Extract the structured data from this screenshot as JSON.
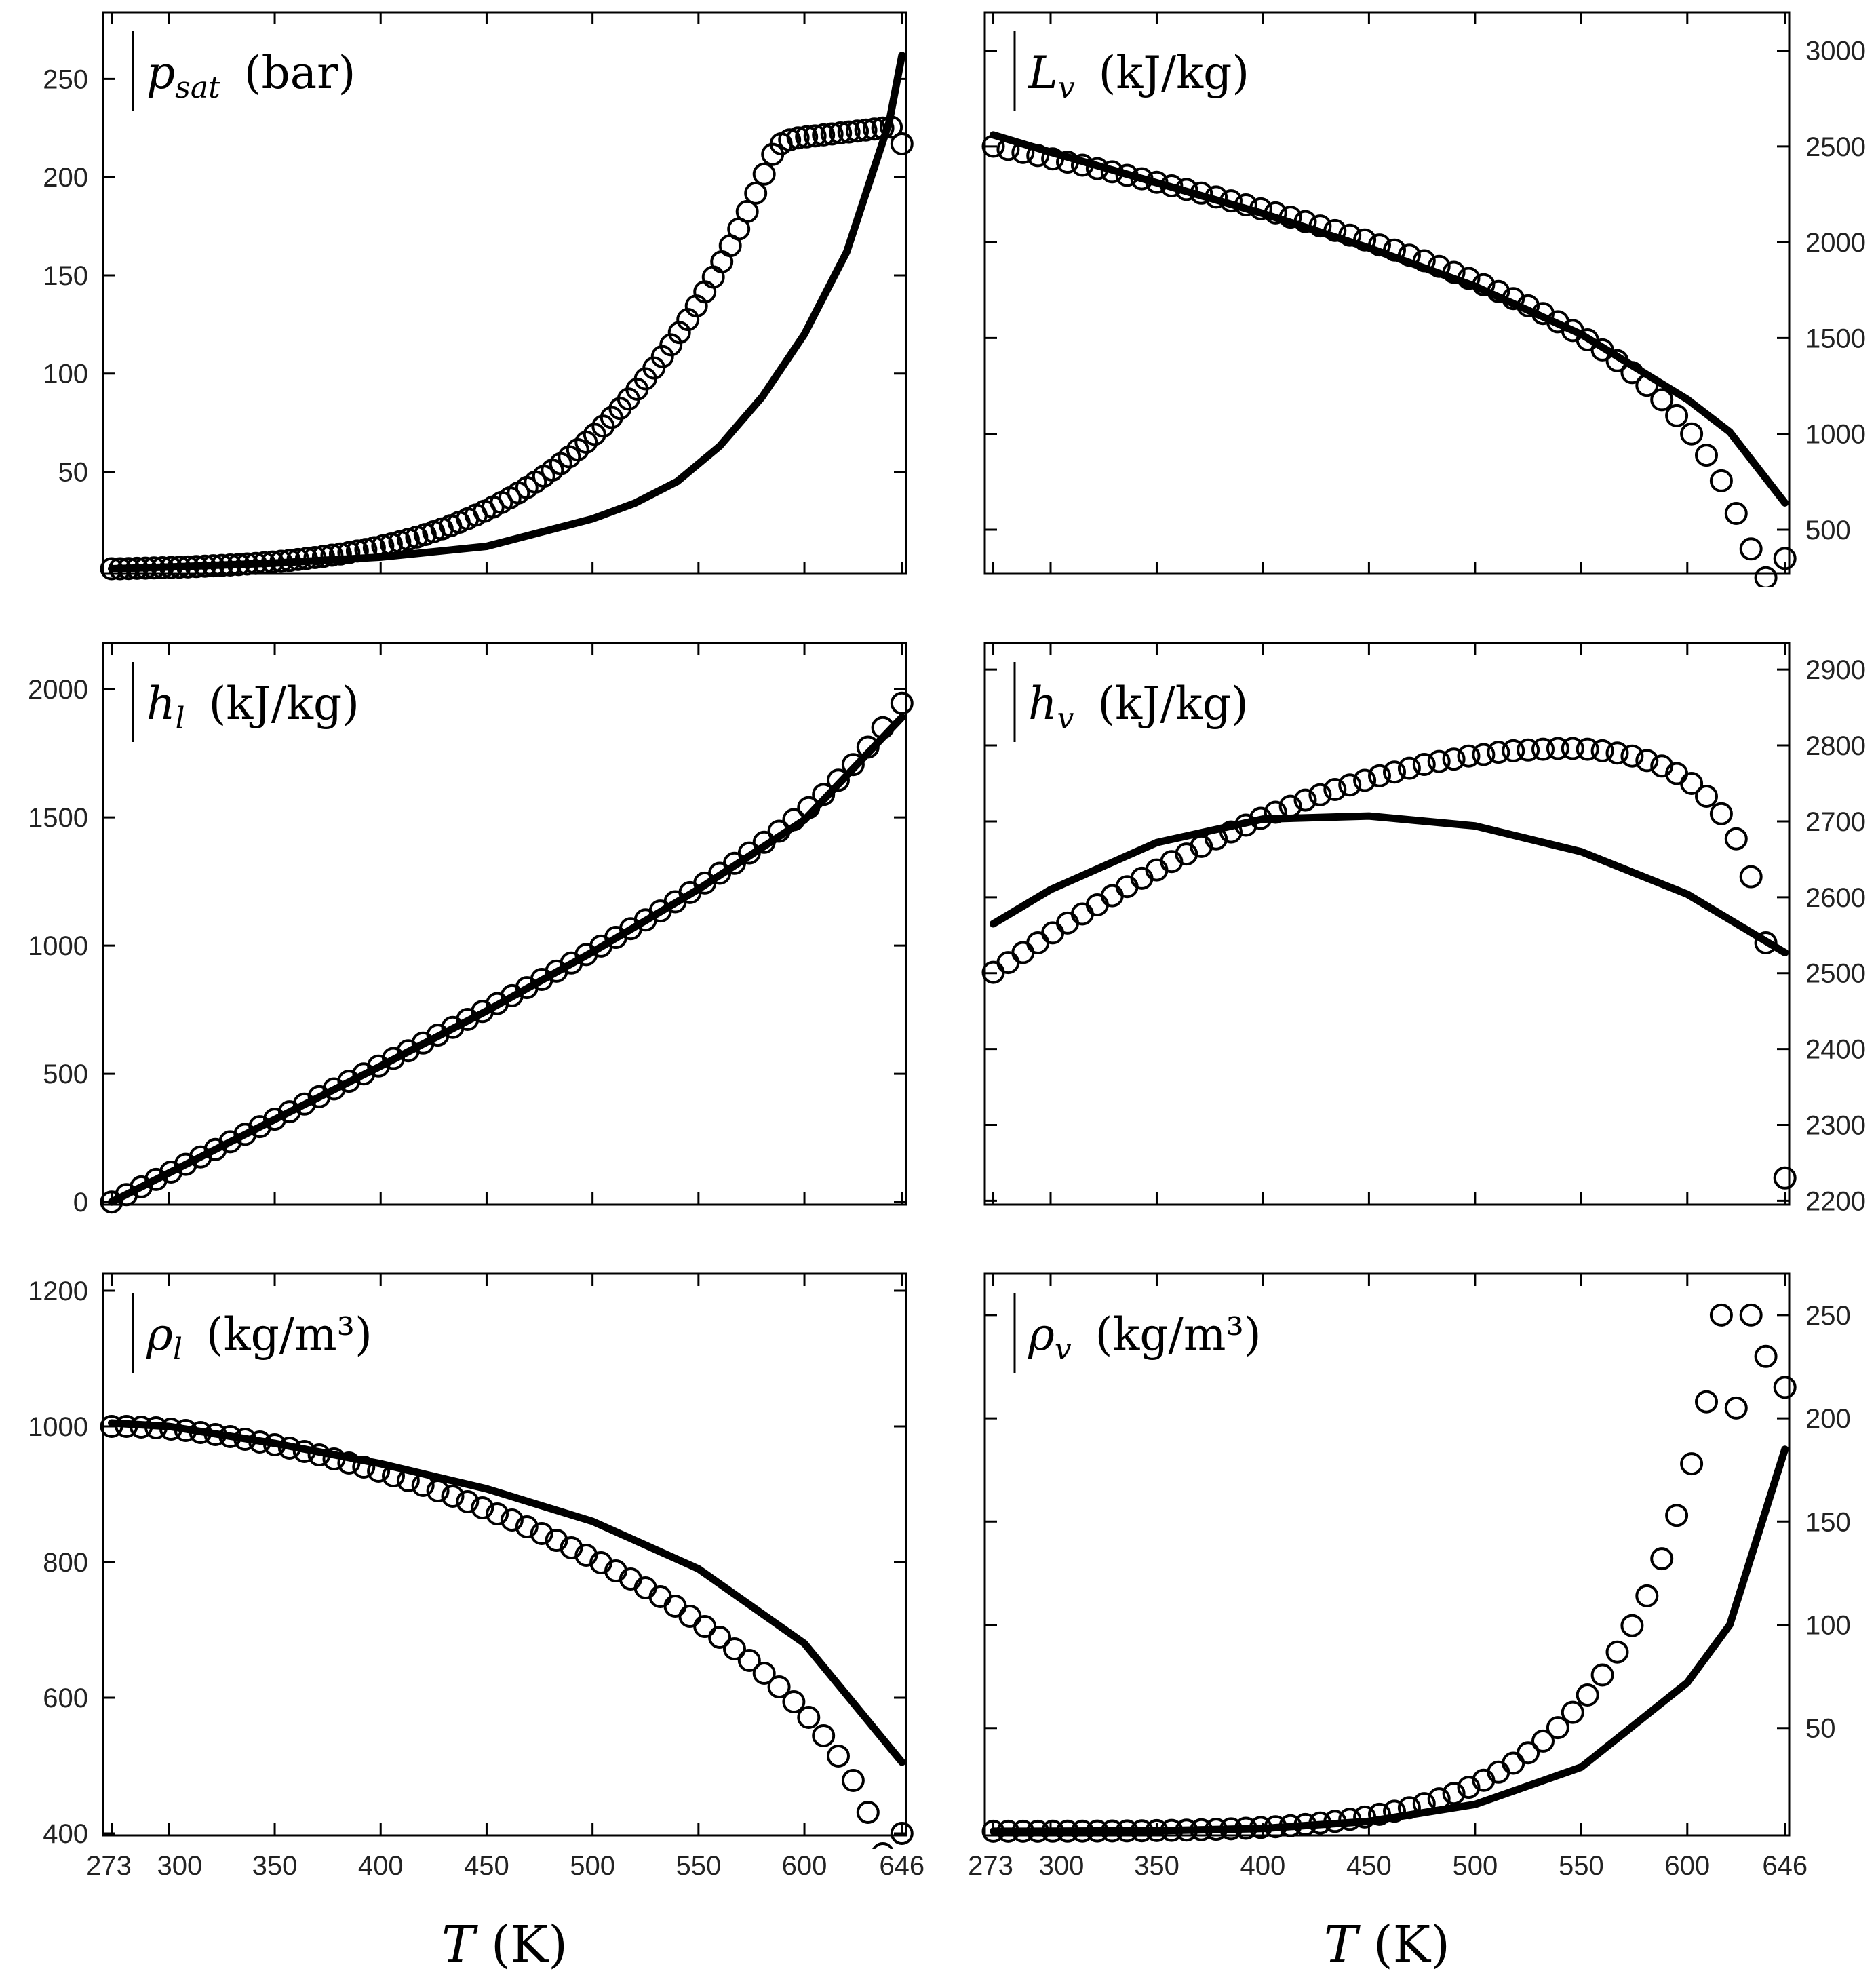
{
  "chart_data": [
    {
      "type": "line",
      "panel": "top-left",
      "label": {
        "symbol": "p",
        "subscript": "sat",
        "unit": "(bar)"
      },
      "x_ticks": [
        273,
        300,
        350,
        400,
        450,
        500,
        550,
        600,
        646
      ],
      "y_ticks": [
        50,
        100,
        150,
        200,
        250
      ],
      "y_axis_side": "left",
      "xlim": [
        269,
        648
      ],
      "ylim": [
        -2,
        284
      ],
      "series": [
        {
          "style": "solid line",
          "x": [
            273,
            300,
            350,
            400,
            450,
            500,
            520,
            540,
            560,
            580,
            600,
            620,
            640,
            646
          ],
          "y": [
            0.6,
            1.5,
            3.5,
            6.5,
            12,
            26,
            34,
            45,
            63,
            88,
            120,
            162,
            228,
            262
          ]
        },
        {
          "style": "open circles",
          "x": [
            273,
            277,
            281,
            285,
            289,
            293,
            297,
            301,
            305,
            309,
            313,
            317,
            321,
            325,
            329,
            333,
            337,
            341,
            345,
            349,
            353,
            357,
            361,
            365,
            369,
            373,
            377,
            381,
            385,
            389,
            393,
            397,
            401,
            405,
            409,
            413,
            417,
            421,
            425,
            429,
            433,
            437,
            441,
            445,
            449,
            453,
            457,
            461,
            465,
            469,
            473,
            477,
            481,
            485,
            489,
            493,
            497,
            501,
            505,
            509,
            513,
            517,
            521,
            525,
            529,
            533,
            537,
            541,
            545,
            549,
            553,
            557,
            561,
            565,
            569,
            573,
            577,
            581,
            585,
            589,
            593,
            597,
            601,
            605,
            609,
            613,
            617,
            621,
            625,
            629,
            633,
            637,
            641,
            646
          ],
          "y": [
            0.6,
            0.6,
            0.7,
            0.8,
            0.9,
            1.0,
            1.1,
            1.2,
            1.4,
            1.5,
            1.7,
            1.9,
            2.1,
            2.3,
            2.5,
            2.7,
            3.0,
            3.3,
            3.6,
            4.0,
            4.4,
            4.8,
            5.3,
            5.8,
            6.3,
            6.9,
            7.5,
            8.1,
            8.8,
            9.6,
            10.4,
            11.3,
            12.2,
            13.2,
            14.3,
            15.5,
            16.7,
            18.0,
            19.4,
            20.9,
            22.5,
            24.2,
            26.0,
            27.9,
            29.9,
            32.0,
            34.3,
            36.7,
            39.2,
            41.9,
            44.7,
            47.7,
            50.8,
            54.1,
            57.6,
            61.2,
            65.0,
            69.0,
            73.2,
            77.6,
            82.2,
            87.0,
            92.0,
            97.3,
            102.8,
            108.6,
            114.6,
            120.9,
            127.5,
            134.4,
            141.6,
            149.1,
            156.9,
            165.1,
            173.6,
            182.5,
            191.8,
            201.5,
            211.6,
            217.0,
            219.0,
            220.0,
            220.5,
            221.0,
            221.5,
            222.0,
            222.5,
            223.0,
            223.5,
            224.0,
            224.5,
            225.0,
            225.5,
            217.0
          ]
        }
      ]
    },
    {
      "type": "line",
      "panel": "top-right",
      "label": {
        "symbol": "L",
        "subscript": "v",
        "unit": "(kJ/kg)"
      },
      "x_ticks": [
        273,
        300,
        350,
        400,
        450,
        500,
        550,
        600,
        646
      ],
      "y_ticks": [
        500,
        1000,
        1500,
        2000,
        2500,
        3000
      ],
      "y_axis_side": "right",
      "xlim": [
        269,
        648
      ],
      "ylim": [
        270,
        3200
      ],
      "series": [
        {
          "style": "solid line",
          "x": [
            273,
            300,
            350,
            400,
            450,
            500,
            550,
            600,
            620,
            646
          ],
          "y": [
            2560,
            2470,
            2310,
            2150,
            1970,
            1770,
            1520,
            1180,
            1010,
            640
          ]
        },
        {
          "style": "open circles",
          "x": [
            273,
            280,
            287,
            294,
            301,
            308,
            315,
            322,
            329,
            336,
            343,
            350,
            357,
            364,
            371,
            378,
            385,
            392,
            399,
            406,
            413,
            420,
            427,
            434,
            441,
            448,
            455,
            462,
            469,
            476,
            483,
            490,
            497,
            504,
            511,
            518,
            525,
            532,
            539,
            546,
            553,
            560,
            567,
            574,
            581,
            588,
            595,
            602,
            609,
            616,
            623,
            630,
            637,
            646
          ],
          "y": [
            2501,
            2484,
            2468,
            2452,
            2435,
            2418,
            2402,
            2384,
            2367,
            2349,
            2331,
            2313,
            2294,
            2275,
            2256,
            2236,
            2216,
            2195,
            2174,
            2153,
            2131,
            2108,
            2085,
            2061,
            2037,
            2012,
            1986,
            1959,
            1932,
            1903,
            1874,
            1843,
            1811,
            1778,
            1743,
            1706,
            1668,
            1628,
            1585,
            1539,
            1491,
            1438,
            1382,
            1320,
            1253,
            1178,
            1095,
            1000,
            889,
            755,
            585,
            400,
            250,
            350
          ]
        }
      ]
    },
    {
      "type": "line",
      "panel": "middle-left",
      "label": {
        "symbol": "h",
        "subscript": "l",
        "unit": "(kJ/kg)"
      },
      "x_ticks": [
        273,
        300,
        350,
        400,
        450,
        500,
        550,
        600,
        646
      ],
      "y_ticks": [
        0,
        500,
        1000,
        1500,
        2000
      ],
      "y_axis_side": "left",
      "xlim": [
        269,
        648
      ],
      "ylim": [
        -10,
        2180
      ],
      "series": [
        {
          "style": "solid line",
          "x": [
            273,
            300,
            350,
            400,
            450,
            500,
            550,
            600,
            646
          ],
          "y": [
            0,
            113,
            322,
            530,
            745,
            975,
            1220,
            1490,
            1890
          ]
        },
        {
          "style": "open circles",
          "x": [
            273,
            280,
            287,
            294,
            301,
            308,
            315,
            322,
            329,
            336,
            343,
            350,
            357,
            364,
            371,
            378,
            385,
            392,
            399,
            406,
            413,
            420,
            427,
            434,
            441,
            448,
            455,
            462,
            469,
            476,
            483,
            490,
            497,
            504,
            511,
            518,
            525,
            532,
            539,
            546,
            553,
            560,
            567,
            574,
            581,
            588,
            595,
            602,
            609,
            616,
            623,
            630,
            637,
            646
          ],
          "y": [
            0,
            29,
            59,
            88,
            117,
            147,
            176,
            205,
            235,
            264,
            294,
            323,
            352,
            382,
            411,
            441,
            471,
            500,
            530,
            560,
            590,
            620,
            651,
            681,
            712,
            743,
            774,
            805,
            836,
            868,
            900,
            932,
            965,
            998,
            1032,
            1066,
            1100,
            1135,
            1171,
            1207,
            1244,
            1282,
            1321,
            1361,
            1403,
            1446,
            1491,
            1538,
            1589,
            1645,
            1706,
            1774,
            1850,
            1945
          ]
        }
      ]
    },
    {
      "type": "line",
      "panel": "middle-right",
      "label": {
        "symbol": "h",
        "subscript": "v",
        "unit": "(kJ/kg)"
      },
      "x_ticks": [
        273,
        300,
        350,
        400,
        450,
        500,
        550,
        600,
        646
      ],
      "y_ticks": [
        2200,
        2300,
        2400,
        2500,
        2600,
        2700,
        2800,
        2900
      ],
      "y_axis_side": "right",
      "xlim": [
        269,
        648
      ],
      "ylim": [
        2195,
        2935
      ],
      "series": [
        {
          "style": "solid line",
          "x": [
            273,
            300,
            350,
            400,
            450,
            500,
            550,
            600,
            646
          ],
          "y": [
            2565,
            2610,
            2672,
            2703,
            2707,
            2694,
            2660,
            2604,
            2527
          ]
        },
        {
          "style": "open circles",
          "x": [
            273,
            280,
            287,
            294,
            301,
            308,
            315,
            322,
            329,
            336,
            343,
            350,
            357,
            364,
            371,
            378,
            385,
            392,
            399,
            406,
            413,
            420,
            427,
            434,
            441,
            448,
            455,
            462,
            469,
            476,
            483,
            490,
            497,
            504,
            511,
            518,
            525,
            532,
            539,
            546,
            553,
            560,
            567,
            574,
            581,
            588,
            595,
            602,
            609,
            616,
            623,
            630,
            637,
            646
          ],
          "y": [
            2501,
            2514,
            2527,
            2540,
            2553,
            2566,
            2578,
            2590,
            2602,
            2614,
            2625,
            2636,
            2647,
            2657,
            2667,
            2677,
            2686,
            2695,
            2704,
            2712,
            2720,
            2728,
            2735,
            2742,
            2748,
            2754,
            2760,
            2765,
            2770,
            2775,
            2779,
            2782,
            2786,
            2788,
            2791,
            2793,
            2794,
            2795,
            2796,
            2796,
            2795,
            2793,
            2790,
            2786,
            2780,
            2773,
            2763,
            2750,
            2733,
            2710,
            2677,
            2627,
            2540,
            2230
          ]
        }
      ]
    },
    {
      "type": "line",
      "panel": "bottom-left",
      "label": {
        "symbol": "ρ",
        "subscript": "l",
        "unit": "(kg/m³)"
      },
      "x_ticks": [
        273,
        300,
        350,
        400,
        450,
        500,
        550,
        600,
        646
      ],
      "y_ticks": [
        400,
        600,
        800,
        1000,
        1200
      ],
      "y_axis_side": "left",
      "xlim": [
        269,
        648
      ],
      "ylim": [
        397,
        1225
      ],
      "series": [
        {
          "style": "solid line",
          "x": [
            273,
            300,
            350,
            400,
            450,
            500,
            550,
            600,
            646
          ],
          "y": [
            1005,
            1000,
            975,
            945,
            908,
            860,
            790,
            680,
            505
          ]
        },
        {
          "style": "open circles",
          "x": [
            273,
            280,
            287,
            294,
            301,
            308,
            315,
            322,
            329,
            336,
            343,
            350,
            357,
            364,
            371,
            378,
            385,
            392,
            399,
            406,
            413,
            420,
            427,
            434,
            441,
            448,
            455,
            462,
            469,
            476,
            483,
            490,
            497,
            504,
            511,
            518,
            525,
            532,
            539,
            546,
            553,
            560,
            567,
            574,
            581,
            588,
            595,
            602,
            609,
            616,
            623,
            630,
            637,
            646
          ],
          "y": [
            1000,
            1000,
            999,
            998,
            996,
            994,
            991,
            988,
            985,
            981,
            977,
            973,
            968,
            963,
            958,
            952,
            946,
            940,
            934,
            927,
            920,
            913,
            905,
            897,
            889,
            880,
            871,
            862,
            852,
            842,
            832,
            821,
            810,
            799,
            787,
            775,
            762,
            749,
            735,
            720,
            705,
            689,
            672,
            655,
            636,
            616,
            594,
            571,
            544,
            514,
            478,
            431,
            370,
            400
          ]
        }
      ]
    },
    {
      "type": "line",
      "panel": "bottom-right",
      "label": {
        "symbol": "ρ",
        "subscript": "v",
        "unit": "(kg/m³)"
      },
      "x_ticks": [
        273,
        300,
        350,
        400,
        450,
        500,
        550,
        600,
        646
      ],
      "y_ticks": [
        50,
        100,
        150,
        200,
        250
      ],
      "y_axis_side": "right",
      "xlim": [
        269,
        648
      ],
      "ylim": [
        -2,
        270
      ],
      "series": [
        {
          "style": "solid line",
          "x": [
            273,
            300,
            350,
            400,
            450,
            500,
            550,
            600,
            620,
            646
          ],
          "y": [
            0.005,
            0.03,
            0.26,
            1.4,
            4.8,
            13,
            31,
            72,
            100,
            185
          ]
        },
        {
          "style": "open circles",
          "x": [
            273,
            280,
            287,
            294,
            301,
            308,
            315,
            322,
            329,
            336,
            343,
            350,
            357,
            364,
            371,
            378,
            385,
            392,
            399,
            406,
            413,
            420,
            427,
            434,
            441,
            448,
            455,
            462,
            469,
            476,
            483,
            490,
            497,
            504,
            511,
            518,
            525,
            532,
            539,
            546,
            553,
            560,
            567,
            574,
            581,
            588,
            595,
            602,
            609,
            616,
            623,
            630,
            637,
            646
          ],
          "y": [
            0.005,
            0.008,
            0.013,
            0.02,
            0.03,
            0.045,
            0.065,
            0.09,
            0.13,
            0.18,
            0.24,
            0.33,
            0.43,
            0.56,
            0.72,
            0.92,
            1.16,
            1.45,
            1.8,
            2.2,
            2.7,
            3.3,
            4.0,
            4.8,
            5.8,
            6.9,
            8.2,
            9.7,
            11.4,
            13.4,
            15.7,
            18.3,
            21.3,
            24.7,
            28.6,
            33.0,
            38.0,
            43.7,
            50.2,
            57.6,
            66.0,
            75.7,
            86.8,
            99.6,
            114,
            132,
            153,
            178,
            208,
            250,
            205,
            250,
            230,
            215
          ]
        }
      ]
    }
  ],
  "axis": {
    "x_label_symbol": "T",
    "x_label_unit": "(K)"
  }
}
